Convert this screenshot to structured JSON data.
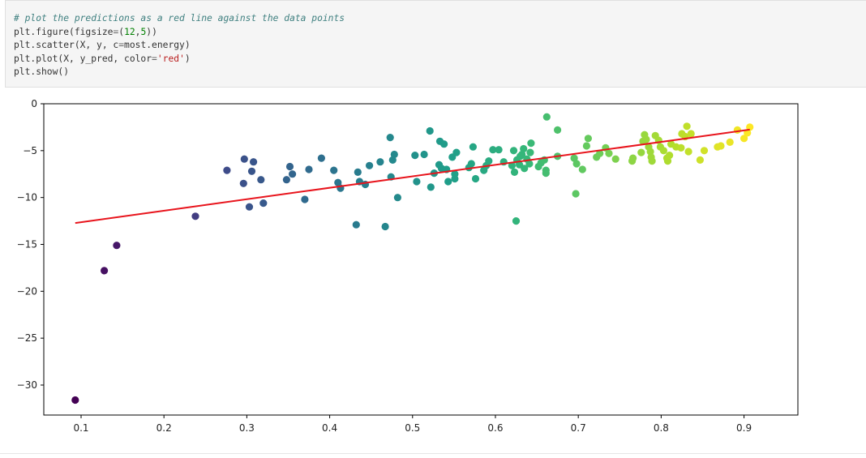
{
  "code_cell": {
    "lines": [
      [
        {
          "t": "# plot the predictions as a red line against the data points",
          "c": "comment"
        }
      ],
      [
        {
          "t": "plt.figure(figsize",
          "c": ""
        },
        {
          "t": "=",
          "c": "op"
        },
        {
          "t": "(",
          "c": ""
        },
        {
          "t": "12",
          "c": "num"
        },
        {
          "t": ",",
          "c": ""
        },
        {
          "t": "5",
          "c": "num"
        },
        {
          "t": "))",
          "c": ""
        }
      ],
      [
        {
          "t": "plt.scatter(X, y, c",
          "c": ""
        },
        {
          "t": "=",
          "c": "op"
        },
        {
          "t": "most.energy)",
          "c": ""
        }
      ],
      [
        {
          "t": "plt.plot(X, y_pred, color",
          "c": ""
        },
        {
          "t": "=",
          "c": "op"
        },
        {
          "t": "'red'",
          "c": "str"
        },
        {
          "t": ")",
          "c": ""
        }
      ],
      [
        {
          "t": "plt.show()",
          "c": ""
        }
      ]
    ]
  },
  "chart_data": {
    "type": "scatter",
    "title": "",
    "xlabel": "",
    "ylabel": "",
    "xlim": [
      0.055,
      0.965
    ],
    "ylim": [
      -33.2,
      0.0
    ],
    "xticks": [
      0.1,
      0.2,
      0.3,
      0.4,
      0.5,
      0.6,
      0.7,
      0.8,
      0.9
    ],
    "xtick_labels": [
      "0.1",
      "0.2",
      "0.3",
      "0.4",
      "0.5",
      "0.6",
      "0.7",
      "0.8",
      "0.9"
    ],
    "yticks": [
      0,
      -5,
      -10,
      -15,
      -20,
      -25,
      -30
    ],
    "ytick_labels": [
      "0",
      "−5",
      "−10",
      "−15",
      "−20",
      "−25",
      "−30"
    ],
    "grid": false,
    "colormap": "viridis",
    "points": [
      [
        0.093,
        -31.6
      ],
      [
        0.128,
        -17.8
      ],
      [
        0.143,
        -15.1
      ],
      [
        0.238,
        -12.0
      ],
      [
        0.276,
        -7.1
      ],
      [
        0.296,
        -8.5
      ],
      [
        0.297,
        -5.9
      ],
      [
        0.303,
        -11.0
      ],
      [
        0.306,
        -7.2
      ],
      [
        0.308,
        -6.2
      ],
      [
        0.317,
        -8.1
      ],
      [
        0.32,
        -10.6
      ],
      [
        0.348,
        -8.1
      ],
      [
        0.352,
        -6.7
      ],
      [
        0.355,
        -7.5
      ],
      [
        0.37,
        -10.2
      ],
      [
        0.375,
        -7.0
      ],
      [
        0.39,
        -5.8
      ],
      [
        0.405,
        -7.1
      ],
      [
        0.41,
        -8.4
      ],
      [
        0.413,
        -9.0
      ],
      [
        0.432,
        -12.9
      ],
      [
        0.434,
        -7.3
      ],
      [
        0.436,
        -8.3
      ],
      [
        0.443,
        -8.6
      ],
      [
        0.448,
        -6.6
      ],
      [
        0.461,
        -6.2
      ],
      [
        0.467,
        -13.1
      ],
      [
        0.473,
        -3.6
      ],
      [
        0.474,
        -7.8
      ],
      [
        0.476,
        -6.0
      ],
      [
        0.478,
        -5.4
      ],
      [
        0.482,
        -10.0
      ],
      [
        0.503,
        -5.5
      ],
      [
        0.505,
        -8.3
      ],
      [
        0.514,
        -5.4
      ],
      [
        0.521,
        -2.9
      ],
      [
        0.522,
        -8.9
      ],
      [
        0.526,
        -7.4
      ],
      [
        0.532,
        -6.5
      ],
      [
        0.533,
        -4.0
      ],
      [
        0.535,
        -6.9
      ],
      [
        0.538,
        -4.3
      ],
      [
        0.541,
        -7.0
      ],
      [
        0.543,
        -8.3
      ],
      [
        0.548,
        -5.7
      ],
      [
        0.551,
        -7.5
      ],
      [
        0.551,
        -8.0
      ],
      [
        0.553,
        -5.2
      ],
      [
        0.568,
        -6.8
      ],
      [
        0.571,
        -6.4
      ],
      [
        0.573,
        -4.6
      ],
      [
        0.576,
        -8.0
      ],
      [
        0.586,
        -7.1
      ],
      [
        0.589,
        -6.6
      ],
      [
        0.592,
        -6.1
      ],
      [
        0.597,
        -4.9
      ],
      [
        0.604,
        -4.9
      ],
      [
        0.61,
        -6.2
      ],
      [
        0.62,
        -6.6
      ],
      [
        0.622,
        -5.0
      ],
      [
        0.623,
        -7.3
      ],
      [
        0.625,
        -12.5
      ],
      [
        0.626,
        -6.0
      ],
      [
        0.629,
        -6.5
      ],
      [
        0.63,
        -5.6
      ],
      [
        0.632,
        -5.4
      ],
      [
        0.634,
        -4.8
      ],
      [
        0.635,
        -6.9
      ],
      [
        0.638,
        -5.9
      ],
      [
        0.641,
        -6.4
      ],
      [
        0.642,
        -5.2
      ],
      [
        0.643,
        -4.2
      ],
      [
        0.652,
        -6.7
      ],
      [
        0.655,
        -6.3
      ],
      [
        0.659,
        -6.0
      ],
      [
        0.661,
        -7.1
      ],
      [
        0.661,
        -7.4
      ],
      [
        0.662,
        -1.4
      ],
      [
        0.675,
        -2.8
      ],
      [
        0.675,
        -5.6
      ],
      [
        0.695,
        -5.8
      ],
      [
        0.697,
        -9.6
      ],
      [
        0.698,
        -6.4
      ],
      [
        0.705,
        -7.0
      ],
      [
        0.71,
        -4.5
      ],
      [
        0.712,
        -3.7
      ],
      [
        0.722,
        -5.7
      ],
      [
        0.726,
        -5.3
      ],
      [
        0.733,
        -4.7
      ],
      [
        0.737,
        -5.3
      ],
      [
        0.745,
        -5.9
      ],
      [
        0.765,
        -6.1
      ],
      [
        0.766,
        -5.8
      ],
      [
        0.776,
        -5.2
      ],
      [
        0.778,
        -4.0
      ],
      [
        0.78,
        -3.3
      ],
      [
        0.782,
        -3.8
      ],
      [
        0.785,
        -4.6
      ],
      [
        0.787,
        -5.1
      ],
      [
        0.788,
        -5.7
      ],
      [
        0.789,
        -6.1
      ],
      [
        0.793,
        -3.4
      ],
      [
        0.797,
        -3.9
      ],
      [
        0.799,
        -4.6
      ],
      [
        0.803,
        -5.0
      ],
      [
        0.807,
        -5.8
      ],
      [
        0.808,
        -6.1
      ],
      [
        0.81,
        -5.5
      ],
      [
        0.812,
        -4.3
      ],
      [
        0.818,
        -4.6
      ],
      [
        0.824,
        -4.7
      ],
      [
        0.825,
        -3.2
      ],
      [
        0.829,
        -3.5
      ],
      [
        0.831,
        -2.4
      ],
      [
        0.833,
        -5.1
      ],
      [
        0.836,
        -3.2
      ],
      [
        0.847,
        -6.0
      ],
      [
        0.852,
        -5.0
      ],
      [
        0.868,
        -4.6
      ],
      [
        0.872,
        -4.5
      ],
      [
        0.883,
        -4.1
      ],
      [
        0.892,
        -2.8
      ],
      [
        0.9,
        -3.7
      ],
      [
        0.904,
        -3.1
      ],
      [
        0.907,
        -2.5
      ]
    ],
    "regression_line": {
      "x": [
        0.093,
        0.907
      ],
      "y": [
        -12.72,
        -2.76
      ],
      "color": "#e8141c"
    }
  }
}
